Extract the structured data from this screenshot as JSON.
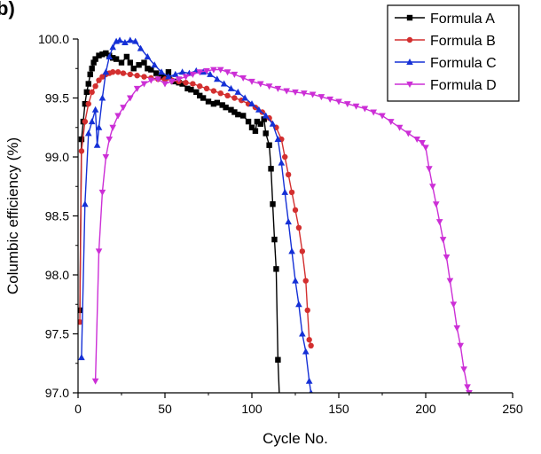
{
  "panel_label": "b)",
  "chart_data": {
    "type": "line",
    "title": "",
    "xlabel": "Cycle No.",
    "ylabel": "Columbic efficiency (%)",
    "xlim": [
      0,
      250
    ],
    "ylim": [
      97.0,
      100.0
    ],
    "xticks": [
      0,
      50,
      100,
      150,
      200,
      250
    ],
    "xtick_labels": [
      "0",
      "50",
      "100",
      "150",
      "200",
      "250"
    ],
    "yticks": [
      97.0,
      97.5,
      98.0,
      98.5,
      99.0,
      99.5,
      100.0
    ],
    "ytick_labels": [
      "97.0",
      "97.5",
      "98.0",
      "98.5",
      "99.0",
      "99.5",
      "100.0"
    ],
    "grid": false,
    "legend_position": "top-right",
    "series": [
      {
        "name": "Formula A",
        "color": "#000000",
        "marker": "square",
        "points": [
          [
            1,
            97.7
          ],
          [
            2,
            99.15
          ],
          [
            3,
            99.3
          ],
          [
            4,
            99.45
          ],
          [
            5,
            99.55
          ],
          [
            6,
            99.62
          ],
          [
            7,
            99.7
          ],
          [
            8,
            99.75
          ],
          [
            9,
            99.8
          ],
          [
            10,
            99.83
          ],
          [
            12,
            99.86
          ],
          [
            14,
            99.87
          ],
          [
            16,
            99.88
          ],
          [
            18,
            99.86
          ],
          [
            20,
            99.84
          ],
          [
            22,
            99.83
          ],
          [
            25,
            99.8
          ],
          [
            28,
            99.85
          ],
          [
            30,
            99.8
          ],
          [
            32,
            99.75
          ],
          [
            35,
            99.78
          ],
          [
            38,
            99.8
          ],
          [
            40,
            99.75
          ],
          [
            42,
            99.74
          ],
          [
            45,
            99.71
          ],
          [
            48,
            99.68
          ],
          [
            50,
            99.67
          ],
          [
            52,
            99.72
          ],
          [
            55,
            99.64
          ],
          [
            58,
            99.63
          ],
          [
            60,
            99.62
          ],
          [
            63,
            99.58
          ],
          [
            65,
            99.57
          ],
          [
            68,
            99.55
          ],
          [
            70,
            99.52
          ],
          [
            72,
            99.5
          ],
          [
            75,
            99.47
          ],
          [
            78,
            99.45
          ],
          [
            80,
            99.46
          ],
          [
            83,
            99.44
          ],
          [
            85,
            99.42
          ],
          [
            88,
            99.4
          ],
          [
            90,
            99.38
          ],
          [
            92,
            99.36
          ],
          [
            95,
            99.35
          ],
          [
            98,
            99.3
          ],
          [
            100,
            99.25
          ],
          [
            102,
            99.22
          ],
          [
            103,
            99.3
          ],
          [
            105,
            99.28
          ],
          [
            107,
            99.32
          ],
          [
            108,
            99.2
          ],
          [
            110,
            99.1
          ],
          [
            111,
            98.9
          ],
          [
            112,
            98.6
          ],
          [
            113,
            98.3
          ],
          [
            114,
            98.05
          ],
          [
            115,
            97.28
          ],
          [
            116,
            96.9
          ]
        ]
      },
      {
        "name": "Formula B",
        "color": "#d32f2f",
        "marker": "circle",
        "points": [
          [
            1,
            97.6
          ],
          [
            2,
            99.05
          ],
          [
            4,
            99.3
          ],
          [
            6,
            99.45
          ],
          [
            8,
            99.55
          ],
          [
            10,
            99.6
          ],
          [
            12,
            99.65
          ],
          [
            14,
            99.68
          ],
          [
            16,
            99.7
          ],
          [
            18,
            99.71
          ],
          [
            20,
            99.72
          ],
          [
            23,
            99.72
          ],
          [
            26,
            99.71
          ],
          [
            30,
            99.7
          ],
          [
            34,
            99.69
          ],
          [
            38,
            99.68
          ],
          [
            42,
            99.67
          ],
          [
            46,
            99.66
          ],
          [
            50,
            99.66
          ],
          [
            54,
            99.65
          ],
          [
            58,
            99.64
          ],
          [
            62,
            99.63
          ],
          [
            66,
            99.62
          ],
          [
            70,
            99.6
          ],
          [
            74,
            99.58
          ],
          [
            78,
            99.56
          ],
          [
            82,
            99.54
          ],
          [
            86,
            99.52
          ],
          [
            90,
            99.5
          ],
          [
            94,
            99.48
          ],
          [
            98,
            99.45
          ],
          [
            102,
            99.42
          ],
          [
            106,
            99.38
          ],
          [
            110,
            99.33
          ],
          [
            114,
            99.25
          ],
          [
            117,
            99.15
          ],
          [
            119,
            99.0
          ],
          [
            121,
            98.85
          ],
          [
            123,
            98.7
          ],
          [
            125,
            98.55
          ],
          [
            127,
            98.4
          ],
          [
            129,
            98.2
          ],
          [
            131,
            97.95
          ],
          [
            132,
            97.7
          ],
          [
            133,
            97.45
          ],
          [
            134,
            97.4
          ]
        ]
      },
      {
        "name": "Formula C",
        "color": "#1530d6",
        "marker": "triangle-up",
        "points": [
          [
            2,
            97.3
          ],
          [
            4,
            98.6
          ],
          [
            6,
            99.2
          ],
          [
            8,
            99.3
          ],
          [
            10,
            99.4
          ],
          [
            11,
            99.1
          ],
          [
            12,
            99.25
          ],
          [
            14,
            99.5
          ],
          [
            16,
            99.72
          ],
          [
            18,
            99.85
          ],
          [
            20,
            99.93
          ],
          [
            22,
            99.98
          ],
          [
            24,
            99.99
          ],
          [
            27,
            99.97
          ],
          [
            30,
            99.99
          ],
          [
            33,
            99.98
          ],
          [
            36,
            99.92
          ],
          [
            40,
            99.85
          ],
          [
            44,
            99.78
          ],
          [
            48,
            99.72
          ],
          [
            52,
            99.68
          ],
          [
            56,
            99.7
          ],
          [
            60,
            99.72
          ],
          [
            64,
            99.71
          ],
          [
            68,
            99.73
          ],
          [
            72,
            99.72
          ],
          [
            76,
            99.7
          ],
          [
            80,
            99.66
          ],
          [
            84,
            99.62
          ],
          [
            88,
            99.58
          ],
          [
            92,
            99.55
          ],
          [
            96,
            99.5
          ],
          [
            100,
            99.45
          ],
          [
            104,
            99.4
          ],
          [
            108,
            99.35
          ],
          [
            112,
            99.28
          ],
          [
            115,
            99.15
          ],
          [
            117,
            98.95
          ],
          [
            119,
            98.7
          ],
          [
            121,
            98.45
          ],
          [
            123,
            98.2
          ],
          [
            125,
            97.95
          ],
          [
            127,
            97.75
          ],
          [
            129,
            97.5
          ],
          [
            131,
            97.35
          ],
          [
            133,
            97.1
          ],
          [
            134,
            97.0
          ]
        ]
      },
      {
        "name": "Formula D",
        "color": "#cc2fd6",
        "marker": "triangle-down",
        "points": [
          [
            10,
            97.1
          ],
          [
            12,
            98.2
          ],
          [
            14,
            98.7
          ],
          [
            16,
            99.0
          ],
          [
            18,
            99.15
          ],
          [
            20,
            99.25
          ],
          [
            23,
            99.35
          ],
          [
            26,
            99.42
          ],
          [
            30,
            99.5
          ],
          [
            34,
            99.58
          ],
          [
            38,
            99.62
          ],
          [
            42,
            99.65
          ],
          [
            46,
            99.66
          ],
          [
            50,
            99.62
          ],
          [
            54,
            99.64
          ],
          [
            58,
            99.66
          ],
          [
            62,
            99.68
          ],
          [
            66,
            99.7
          ],
          [
            70,
            99.72
          ],
          [
            74,
            99.73
          ],
          [
            78,
            99.74
          ],
          [
            82,
            99.74
          ],
          [
            86,
            99.72
          ],
          [
            90,
            99.7
          ],
          [
            95,
            99.67
          ],
          [
            100,
            99.64
          ],
          [
            105,
            99.62
          ],
          [
            110,
            99.6
          ],
          [
            115,
            99.58
          ],
          [
            120,
            99.56
          ],
          [
            125,
            99.55
          ],
          [
            130,
            99.54
          ],
          [
            135,
            99.53
          ],
          [
            140,
            99.51
          ],
          [
            145,
            99.49
          ],
          [
            150,
            99.47
          ],
          [
            155,
            99.45
          ],
          [
            160,
            99.43
          ],
          [
            165,
            99.41
          ],
          [
            170,
            99.38
          ],
          [
            175,
            99.35
          ],
          [
            180,
            99.3
          ],
          [
            185,
            99.25
          ],
          [
            190,
            99.2
          ],
          [
            195,
            99.15
          ],
          [
            198,
            99.12
          ],
          [
            200,
            99.08
          ],
          [
            202,
            98.9
          ],
          [
            204,
            98.75
          ],
          [
            206,
            98.6
          ],
          [
            208,
            98.45
          ],
          [
            210,
            98.3
          ],
          [
            212,
            98.15
          ],
          [
            214,
            97.95
          ],
          [
            216,
            97.75
          ],
          [
            218,
            97.55
          ],
          [
            220,
            97.4
          ],
          [
            222,
            97.2
          ],
          [
            224,
            97.05
          ],
          [
            225,
            97.0
          ]
        ]
      }
    ]
  }
}
